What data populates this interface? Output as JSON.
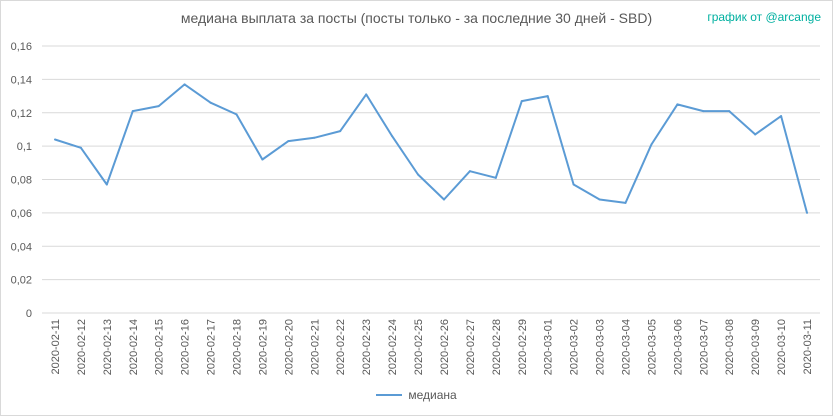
{
  "chart_data": {
    "type": "line",
    "title": "медиана выплата за посты  (посты только - за последние 30 дней - SBD)",
    "credit": "график от @arcange",
    "categories": [
      "2020-02-11",
      "2020-02-12",
      "2020-02-13",
      "2020-02-14",
      "2020-02-15",
      "2020-02-16",
      "2020-02-17",
      "2020-02-18",
      "2020-02-19",
      "2020-02-20",
      "2020-02-21",
      "2020-02-22",
      "2020-02-23",
      "2020-02-24",
      "2020-02-25",
      "2020-02-26",
      "2020-02-27",
      "2020-02-28",
      "2020-02-29",
      "2020-03-01",
      "2020-03-02",
      "2020-03-03",
      "2020-03-04",
      "2020-03-05",
      "2020-03-06",
      "2020-03-07",
      "2020-03-08",
      "2020-03-09",
      "2020-03-10",
      "2020-03-11"
    ],
    "series": [
      {
        "name": "медиана",
        "color": "#5b9bd5",
        "values": [
          0.104,
          0.099,
          0.077,
          0.121,
          0.124,
          0.137,
          0.126,
          0.119,
          0.092,
          0.103,
          0.105,
          0.109,
          0.131,
          0.106,
          0.083,
          0.068,
          0.085,
          0.081,
          0.127,
          0.13,
          0.077,
          0.068,
          0.066,
          0.101,
          0.125,
          0.121,
          0.121,
          0.107,
          0.118,
          0.06
        ]
      }
    ],
    "yticks": [
      "0",
      "0,02",
      "0,04",
      "0,06",
      "0,08",
      "0,1",
      "0,12",
      "0,14",
      "0,16"
    ],
    "ylim": [
      0,
      0.16
    ],
    "grid": true,
    "legend_position": "bottom",
    "colors": {
      "gridline": "#d9d9d9",
      "text": "#595959",
      "credit": "#00b0a0"
    }
  }
}
